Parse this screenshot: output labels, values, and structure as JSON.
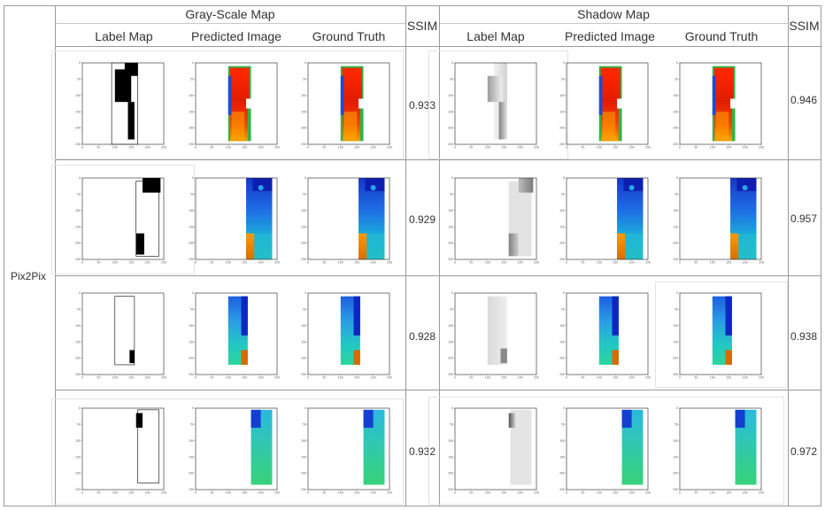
{
  "header": {
    "gray_scale_map": "Gray-Scale Map",
    "shadow_map": "Shadow Map",
    "ssim": "SSIM",
    "label_map": "Label Map",
    "predicted_image": "Predicted Image",
    "ground_truth": "Ground Truth"
  },
  "method": "Pix2Pix",
  "axis_ticks": {
    "x": [
      "0",
      "50",
      "100",
      "150",
      "200",
      "250"
    ],
    "y": [
      "0",
      "50",
      "100",
      "150",
      "200",
      "250"
    ]
  },
  "rows": [
    {
      "ssim_gray": "0.933",
      "ssim_shadow": "0.946"
    },
    {
      "ssim_gray": "0.929",
      "ssim_shadow": "0.957"
    },
    {
      "ssim_gray": "0.928",
      "ssim_shadow": "0.938"
    },
    {
      "ssim_gray": "0.932",
      "ssim_shadow": "0.972"
    }
  ]
}
